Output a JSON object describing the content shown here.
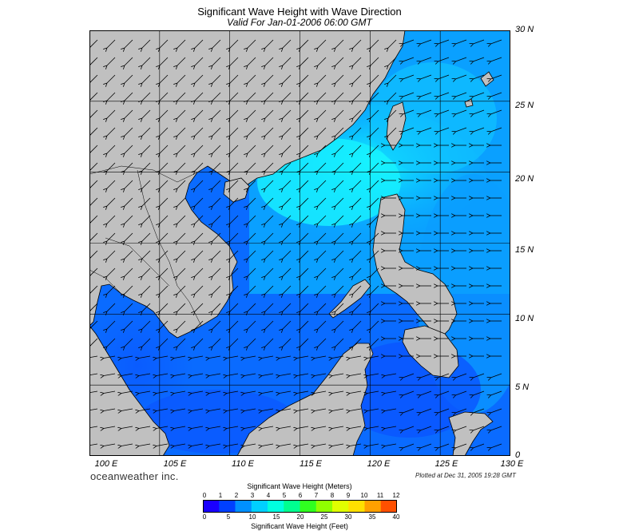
{
  "title": "Significant Wave Height with Wave Direction",
  "subtitle": "Valid For Jan-01-2006 06:00 GMT",
  "brand": "oceanweather inc.",
  "plotted": "Plotted at Dec 31, 2005 19:28 GMT",
  "map": {
    "lon_range": [
      100,
      130
    ],
    "lat_range": [
      0,
      30
    ],
    "grid_step_deg": 5,
    "land_color": "#c0c0c0",
    "border_color": "#000000"
  },
  "lat_labels": [
    "30 N",
    "25 N",
    "20 N",
    "15 N",
    "10 N",
    "5 N",
    "0"
  ],
  "lon_labels": [
    "100 E",
    "105 E",
    "110 E",
    "115 E",
    "120 E",
    "125 E",
    "130 E"
  ],
  "colorbar": {
    "title_meters": "Significant Wave Height (Meters)",
    "title_feet": "Significant Wave Height (Feet)",
    "meters_ticks": [
      "0",
      "1",
      "2",
      "3",
      "4",
      "5",
      "6",
      "7",
      "8",
      "9",
      "10",
      "11",
      "12"
    ],
    "feet_ticks": [
      "0",
      "5",
      "10",
      "15",
      "20",
      "25",
      "30",
      "35",
      "40"
    ],
    "colors": [
      "#1a00ff",
      "#0040ff",
      "#0090ff",
      "#00d0ff",
      "#00ffe0",
      "#00ff90",
      "#30ff20",
      "#90ff00",
      "#e0ff00",
      "#ffe000",
      "#ffa000",
      "#ff5000",
      "#ff1000"
    ]
  }
}
